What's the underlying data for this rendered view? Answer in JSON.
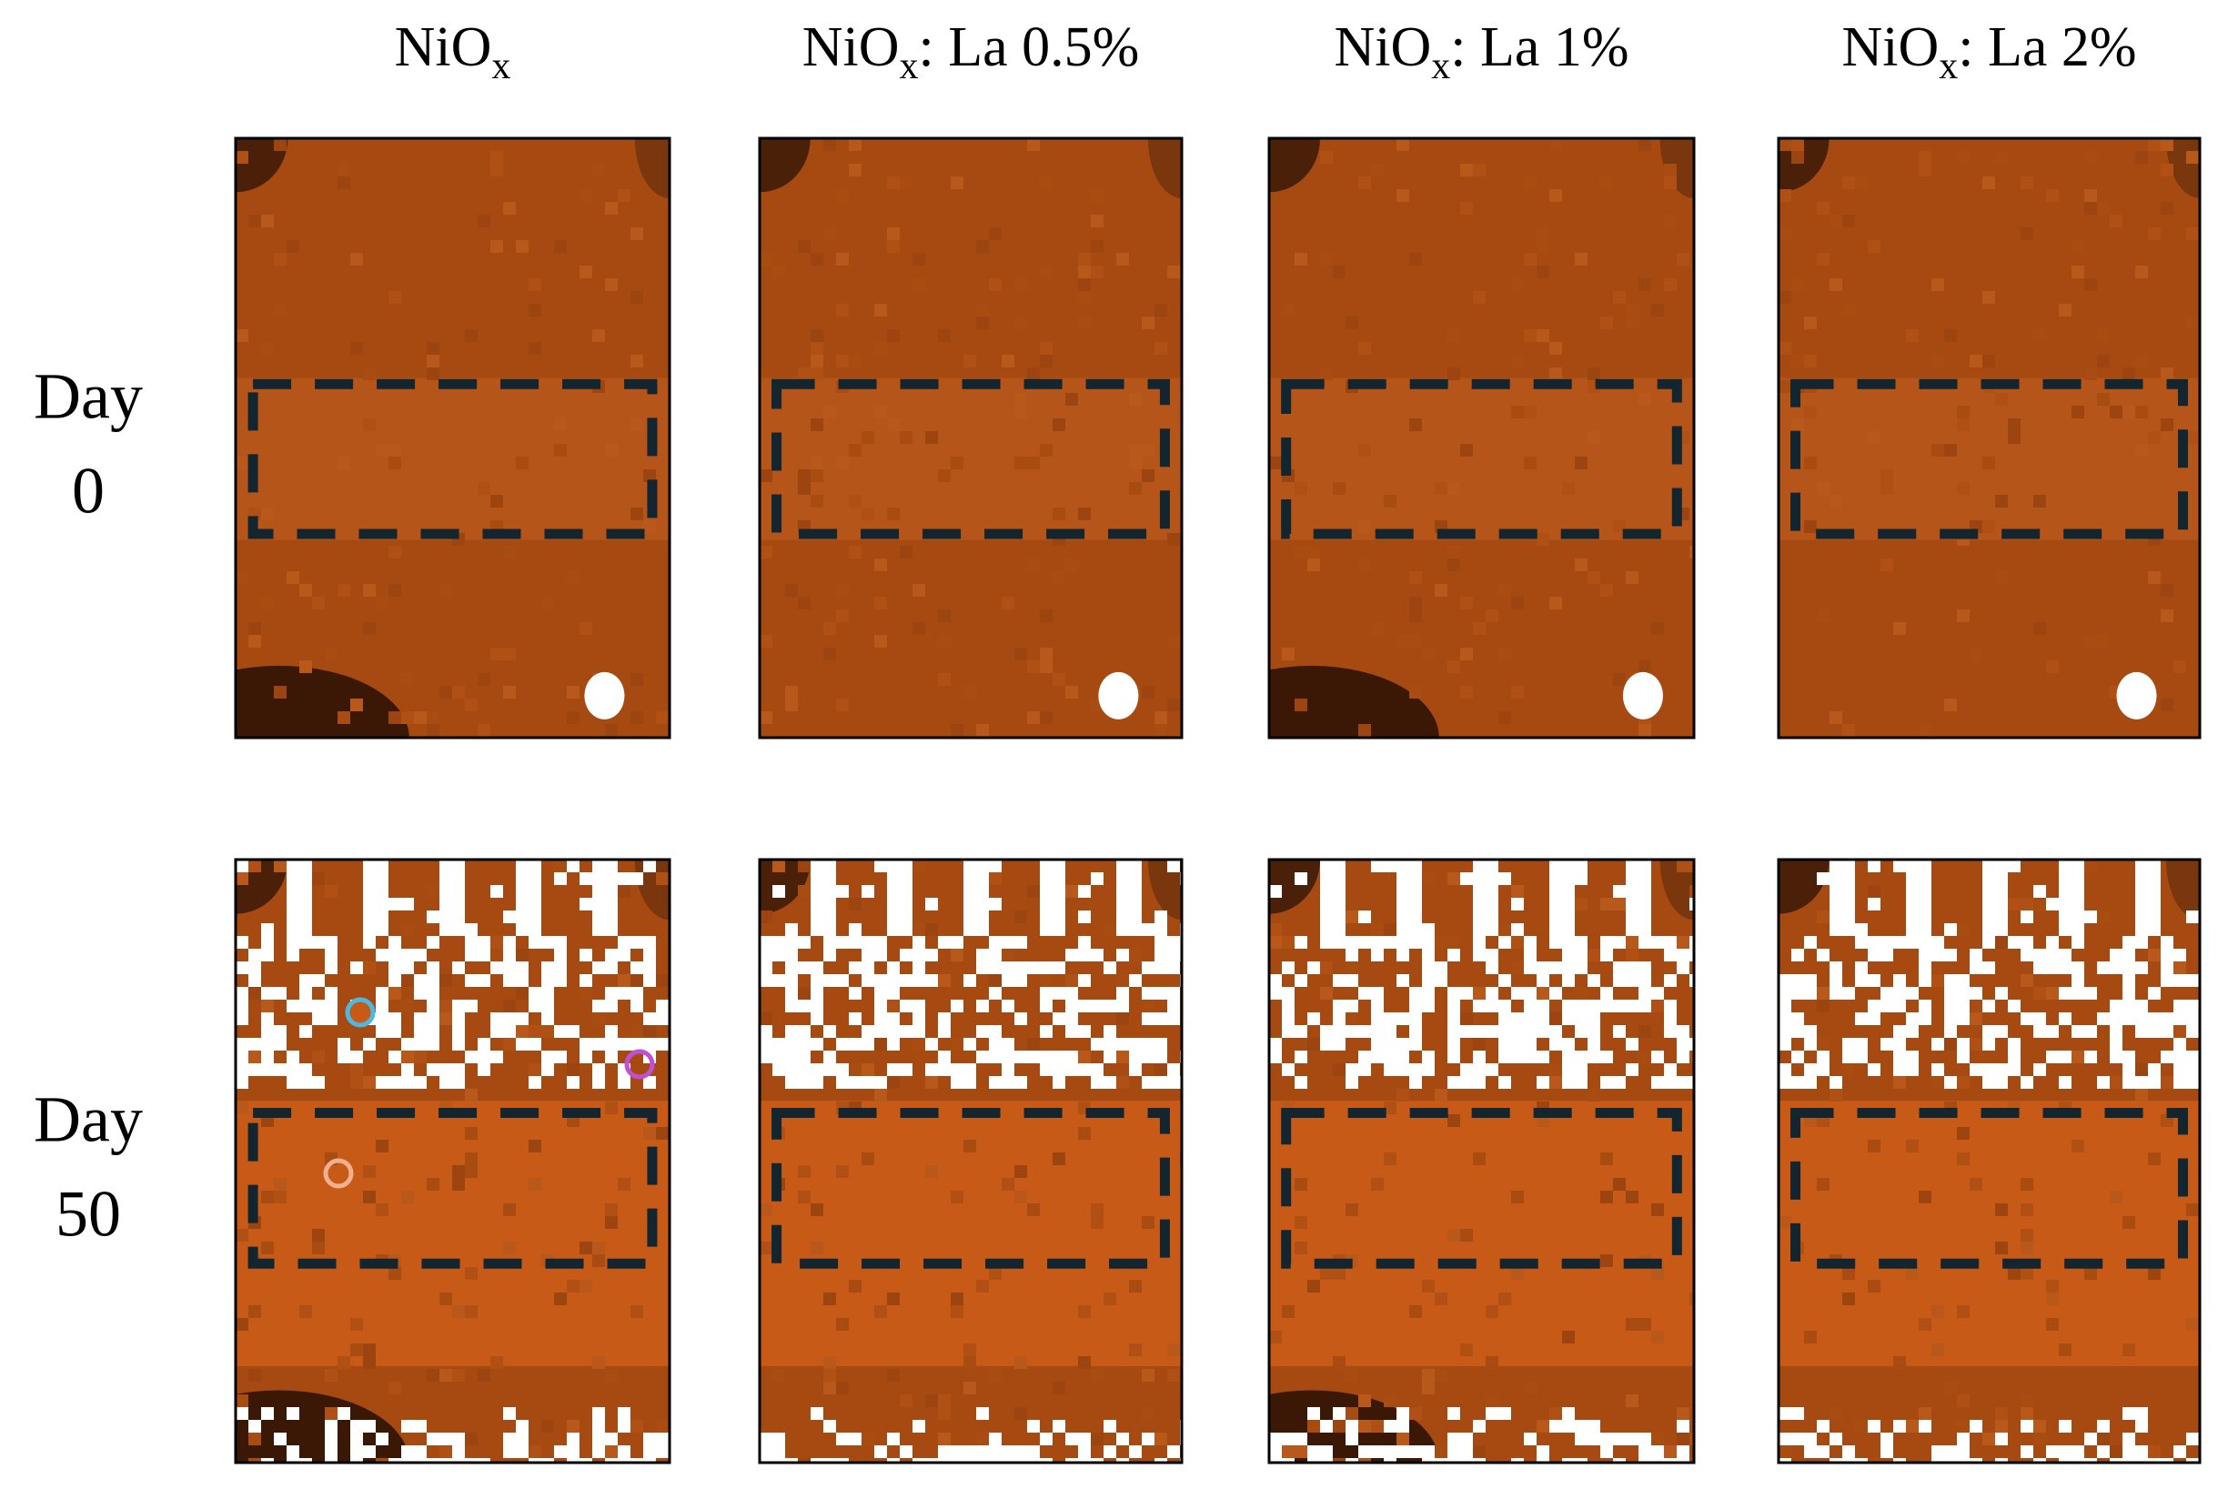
{
  "columns": [
    {
      "base": "NiO",
      "sub": "x"
    },
    {
      "base": "NiO",
      "sub": "x",
      "suffix": ": La 0.5%"
    },
    {
      "base": "NiO",
      "sub": "x",
      "suffix": ": La 1%"
    },
    {
      "base": "NiO",
      "sub": "x",
      "suffix": ": La 2%"
    }
  ],
  "rows": [
    {
      "lines": [
        "Day",
        "0"
      ]
    },
    {
      "lines": [
        "Day",
        "50"
      ]
    }
  ]
}
